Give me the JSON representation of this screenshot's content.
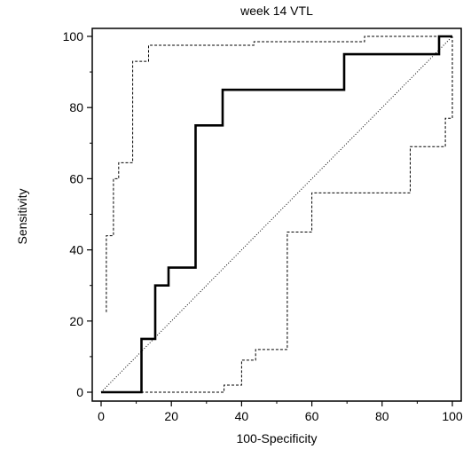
{
  "chart_data": {
    "type": "line",
    "title": "week 14 VTL",
    "xlabel": "100-Specificity",
    "ylabel": "Sensitivity",
    "xlim": [
      0,
      100
    ],
    "ylim": [
      0,
      100
    ],
    "xticks": [
      0,
      20,
      40,
      60,
      80,
      100
    ],
    "yticks": [
      0,
      20,
      40,
      60,
      80,
      100
    ],
    "xtick_labels": [
      "0",
      "20",
      "40",
      "60",
      "80",
      "100"
    ],
    "ytick_labels": [
      "0",
      "20",
      "40",
      "60",
      "80",
      "100"
    ],
    "grid": false,
    "legend": "none",
    "series": [
      {
        "role": "roc-curve",
        "style": "solid-thick",
        "color": "#000000",
        "points": [
          [
            0,
            0
          ],
          [
            11.5,
            0
          ],
          [
            11.5,
            15
          ],
          [
            15.4,
            15
          ],
          [
            15.4,
            30
          ],
          [
            19.2,
            30
          ],
          [
            19.2,
            35
          ],
          [
            26.9,
            35
          ],
          [
            26.9,
            75
          ],
          [
            34.6,
            75
          ],
          [
            34.6,
            85
          ],
          [
            69.2,
            85
          ],
          [
            69.2,
            95
          ],
          [
            96.2,
            95
          ],
          [
            96.2,
            100
          ],
          [
            100,
            100
          ]
        ]
      },
      {
        "role": "upper-confidence-bound",
        "style": "dashed",
        "color": "#000000",
        "points": [
          [
            1.5,
            22.5
          ],
          [
            1.5,
            44
          ],
          [
            3.5,
            44
          ],
          [
            3.5,
            60
          ],
          [
            5,
            60
          ],
          [
            5,
            64.5
          ],
          [
            9,
            64.5
          ],
          [
            9,
            93
          ],
          [
            13.5,
            93
          ],
          [
            13.5,
            97.5
          ],
          [
            43.5,
            97.5
          ],
          [
            43.5,
            98.5
          ],
          [
            75,
            98.5
          ],
          [
            75,
            100
          ],
          [
            100,
            100
          ]
        ]
      },
      {
        "role": "lower-confidence-bound",
        "style": "dashed",
        "color": "#000000",
        "points": [
          [
            0,
            0
          ],
          [
            35,
            0
          ],
          [
            35,
            2
          ],
          [
            40,
            2
          ],
          [
            40,
            9
          ],
          [
            44,
            9
          ],
          [
            44,
            12
          ],
          [
            53,
            12
          ],
          [
            53,
            45
          ],
          [
            60,
            45
          ],
          [
            60,
            56
          ],
          [
            88,
            56
          ],
          [
            88,
            69
          ],
          [
            98,
            69
          ],
          [
            98,
            77
          ],
          [
            100,
            77
          ],
          [
            100,
            100
          ]
        ]
      },
      {
        "role": "reference-diagonal",
        "style": "dotted",
        "color": "#000000",
        "points": [
          [
            0,
            0
          ],
          [
            100,
            100
          ]
        ]
      }
    ]
  }
}
